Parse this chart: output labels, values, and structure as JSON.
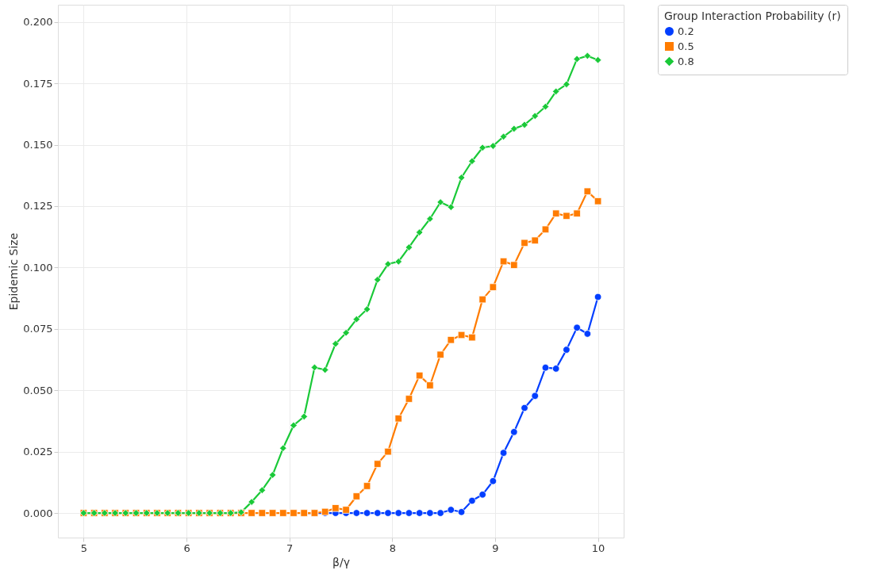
{
  "chart_data": {
    "type": "line",
    "xlabel": "β/γ",
    "ylabel": "Epidemic Size",
    "legend_title": "Group Interaction Probability (r)",
    "legend": "top right",
    "grid": true,
    "line_style": "solid",
    "x": [
      5.0,
      5.102,
      5.204,
      5.306,
      5.408,
      5.51,
      5.612,
      5.714,
      5.816,
      5.918,
      6.02,
      6.122,
      6.224,
      6.327,
      6.429,
      6.531,
      6.633,
      6.735,
      6.837,
      6.939,
      7.041,
      7.143,
      7.245,
      7.347,
      7.449,
      7.551,
      7.653,
      7.755,
      7.857,
      7.959,
      8.061,
      8.163,
      8.265,
      8.367,
      8.469,
      8.571,
      8.673,
      8.776,
      8.878,
      8.98,
      9.082,
      9.184,
      9.286,
      9.388,
      9.49,
      9.592,
      9.694,
      9.796,
      9.898,
      10.0
    ],
    "xlim": [
      4.75,
      10.25
    ],
    "xticks": [
      5,
      6,
      7,
      8,
      9,
      10
    ],
    "ylim": [
      -0.01,
      0.207
    ],
    "yticks": [
      {
        "value": 0,
        "label": "0.000"
      },
      {
        "value": 0.025,
        "label": "0.025"
      },
      {
        "value": 0.05,
        "label": "0.050"
      },
      {
        "value": 0.075,
        "label": "0.075"
      },
      {
        "value": 0.1,
        "label": "0.100"
      },
      {
        "value": 0.125,
        "label": "0.125"
      },
      {
        "value": 0.15,
        "label": "0.150"
      },
      {
        "value": 0.175,
        "label": "0.175"
      },
      {
        "value": 0.2,
        "label": "0.200"
      }
    ],
    "series": [
      {
        "name": "0.2",
        "color": "#023eff",
        "marker": "circle",
        "values": [
          null,
          null,
          null,
          null,
          null,
          null,
          null,
          null,
          null,
          null,
          null,
          null,
          null,
          null,
          null,
          null,
          null,
          null,
          null,
          null,
          null,
          0,
          0,
          0,
          0,
          0,
          0,
          0,
          0,
          0,
          0,
          0,
          0,
          0,
          0,
          0.0013,
          0.0004,
          0.005,
          0.0075,
          0.013,
          0.0245,
          0.033,
          0.0428,
          0.0477,
          0.0592,
          0.0588,
          0.0665,
          0.0755,
          0.073,
          0.088
        ]
      },
      {
        "name": "0.5",
        "color": "#ff7c00",
        "marker": "square",
        "values": [
          0,
          0,
          0,
          0,
          0,
          0,
          0,
          0,
          0,
          0,
          0,
          0,
          0,
          0,
          0,
          0,
          0,
          0,
          0,
          0,
          0,
          0,
          0,
          0.0005,
          0.002,
          0.0013,
          0.0068,
          0.011,
          0.02,
          0.025,
          0.0385,
          0.0465,
          0.056,
          0.052,
          0.0645,
          0.0705,
          0.0725,
          0.0715,
          0.087,
          0.092,
          0.1025,
          0.101,
          0.11,
          0.111,
          0.1155,
          0.122,
          0.121,
          0.122,
          0.131,
          0.127
        ]
      },
      {
        "name": "0.8",
        "color": "#1ac938",
        "marker": "diamond",
        "values": [
          0,
          0,
          0,
          0,
          0,
          0,
          0,
          0,
          0,
          0,
          0,
          0,
          0,
          0,
          0,
          0.0003,
          0.0045,
          0.0093,
          0.0155,
          0.0264,
          0.0357,
          0.0393,
          0.0593,
          0.0583,
          0.0689,
          0.0734,
          0.0789,
          0.083,
          0.095,
          0.1014,
          0.1024,
          0.1082,
          0.1143,
          0.1198,
          0.1266,
          0.1246,
          0.1366,
          0.1433,
          0.1488,
          0.1495,
          0.1533,
          0.1565,
          0.1581,
          0.1617,
          0.1655,
          0.1717,
          0.1746,
          0.1849,
          0.1862,
          0.1845
        ]
      }
    ]
  }
}
